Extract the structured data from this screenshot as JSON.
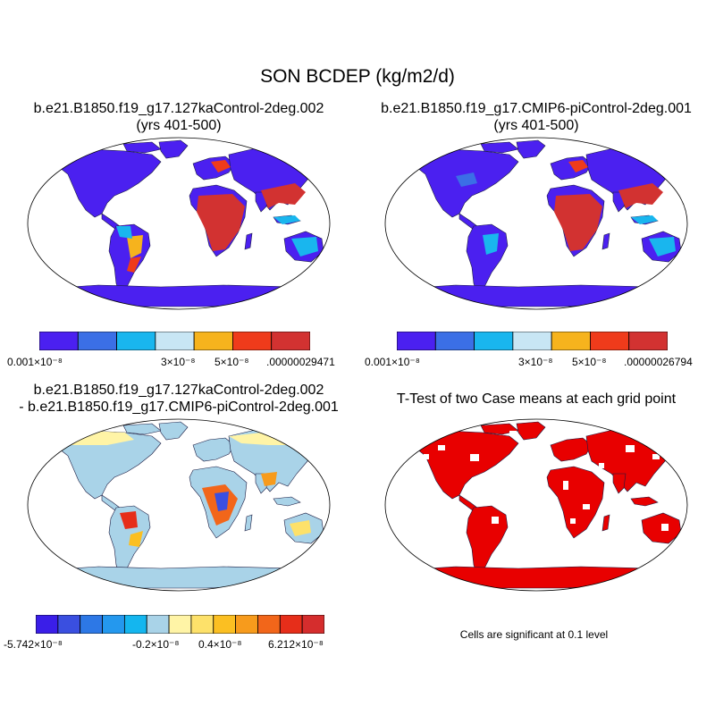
{
  "title": "SON BCDEP (kg/m2/d)",
  "panels": [
    {
      "id": "case1",
      "title_line1": "b.e21.B1850.f19_g17.127kaControl-2deg.002",
      "title_line2": "(yrs 401-500)",
      "colorbar": {
        "colors": [
          "#4b20f0",
          "#3b6fe6",
          "#19b6ee",
          "#c8e6f4",
          "#f6b31d",
          "#ef3b1b",
          "#d23231"
        ],
        "labels": [
          "0.001×10⁻⁸",
          "3×10⁻⁸",
          "5×10⁻⁸",
          ".00000029471"
        ]
      }
    },
    {
      "id": "case2",
      "title_line1": "b.e21.B1850.f19_g17.CMIP6-piControl-2deg.001",
      "title_line2": "(yrs 401-500)",
      "colorbar": {
        "colors": [
          "#4b20f0",
          "#3b6fe6",
          "#19b6ee",
          "#c8e6f4",
          "#f6b31d",
          "#ef3b1b",
          "#d23231"
        ],
        "labels": [
          "0.001×10⁻⁸",
          "3×10⁻⁸",
          "5×10⁻⁸",
          ".00000026794"
        ]
      }
    },
    {
      "id": "difference",
      "title_line1": "b.e21.B1850.f19_g17.127kaControl-2deg.002",
      "title_line2": "- b.e21.B1850.f19_g17.CMIP6-piControl-2deg.001",
      "colorbar": {
        "colors": [
          "#3a1ee8",
          "#3a4fe0",
          "#2d78e6",
          "#2498ee",
          "#14b6ef",
          "#a9d3e8",
          "#fff4a6",
          "#fde16a",
          "#fbbf22",
          "#f79b1c",
          "#f2661a",
          "#e62e1a",
          "#d52d2d"
        ],
        "labels": [
          "-5.742×10⁻⁸",
          "-0.2×10⁻⁸",
          "0.4×10⁻⁸",
          "6.212×10⁻⁸"
        ]
      }
    },
    {
      "id": "ttest",
      "title_line1": "T-Test of two Case means at each grid point",
      "note": "Cells are significant at 0.1 level",
      "significant_color": "#e80000"
    }
  ]
}
